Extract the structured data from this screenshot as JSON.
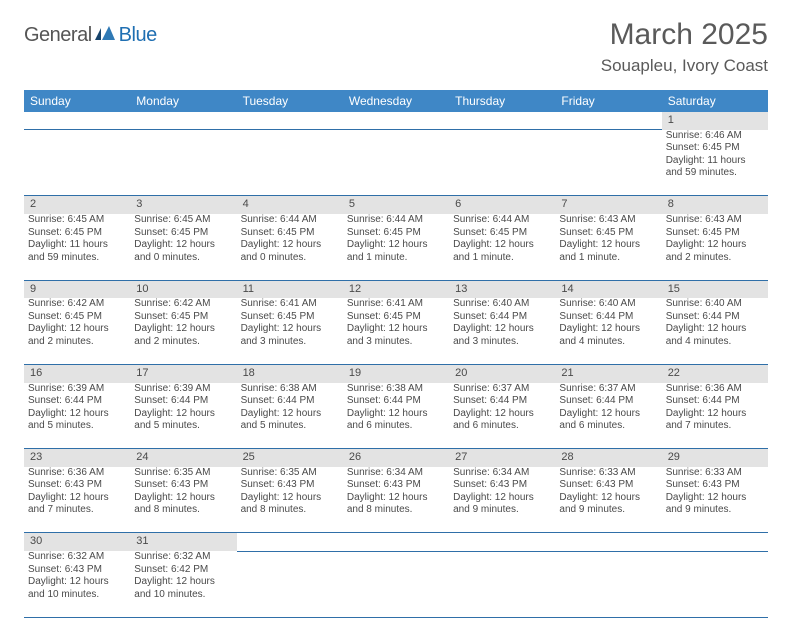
{
  "logo": {
    "text1": "General",
    "text2": "Blue"
  },
  "title": "March 2025",
  "location": "Souapleu, Ivory Coast",
  "colors": {
    "header_bg": "#3f87c6",
    "header_text": "#ffffff",
    "daynum_bg": "#e3e3e3",
    "body_text": "#4a4a4a",
    "rule": "#2f6fa8",
    "logo_blue": "#1f6fb2",
    "logo_gray": "#555555"
  },
  "weekdays": [
    "Sunday",
    "Monday",
    "Tuesday",
    "Wednesday",
    "Thursday",
    "Friday",
    "Saturday"
  ],
  "weeks": [
    [
      null,
      null,
      null,
      null,
      null,
      null,
      {
        "n": "1",
        "sr": "Sunrise: 6:46 AM",
        "ss": "Sunset: 6:45 PM",
        "dl": "Daylight: 11 hours and 59 minutes."
      }
    ],
    [
      {
        "n": "2",
        "sr": "Sunrise: 6:45 AM",
        "ss": "Sunset: 6:45 PM",
        "dl": "Daylight: 11 hours and 59 minutes."
      },
      {
        "n": "3",
        "sr": "Sunrise: 6:45 AM",
        "ss": "Sunset: 6:45 PM",
        "dl": "Daylight: 12 hours and 0 minutes."
      },
      {
        "n": "4",
        "sr": "Sunrise: 6:44 AM",
        "ss": "Sunset: 6:45 PM",
        "dl": "Daylight: 12 hours and 0 minutes."
      },
      {
        "n": "5",
        "sr": "Sunrise: 6:44 AM",
        "ss": "Sunset: 6:45 PM",
        "dl": "Daylight: 12 hours and 1 minute."
      },
      {
        "n": "6",
        "sr": "Sunrise: 6:44 AM",
        "ss": "Sunset: 6:45 PM",
        "dl": "Daylight: 12 hours and 1 minute."
      },
      {
        "n": "7",
        "sr": "Sunrise: 6:43 AM",
        "ss": "Sunset: 6:45 PM",
        "dl": "Daylight: 12 hours and 1 minute."
      },
      {
        "n": "8",
        "sr": "Sunrise: 6:43 AM",
        "ss": "Sunset: 6:45 PM",
        "dl": "Daylight: 12 hours and 2 minutes."
      }
    ],
    [
      {
        "n": "9",
        "sr": "Sunrise: 6:42 AM",
        "ss": "Sunset: 6:45 PM",
        "dl": "Daylight: 12 hours and 2 minutes."
      },
      {
        "n": "10",
        "sr": "Sunrise: 6:42 AM",
        "ss": "Sunset: 6:45 PM",
        "dl": "Daylight: 12 hours and 2 minutes."
      },
      {
        "n": "11",
        "sr": "Sunrise: 6:41 AM",
        "ss": "Sunset: 6:45 PM",
        "dl": "Daylight: 12 hours and 3 minutes."
      },
      {
        "n": "12",
        "sr": "Sunrise: 6:41 AM",
        "ss": "Sunset: 6:45 PM",
        "dl": "Daylight: 12 hours and 3 minutes."
      },
      {
        "n": "13",
        "sr": "Sunrise: 6:40 AM",
        "ss": "Sunset: 6:44 PM",
        "dl": "Daylight: 12 hours and 3 minutes."
      },
      {
        "n": "14",
        "sr": "Sunrise: 6:40 AM",
        "ss": "Sunset: 6:44 PM",
        "dl": "Daylight: 12 hours and 4 minutes."
      },
      {
        "n": "15",
        "sr": "Sunrise: 6:40 AM",
        "ss": "Sunset: 6:44 PM",
        "dl": "Daylight: 12 hours and 4 minutes."
      }
    ],
    [
      {
        "n": "16",
        "sr": "Sunrise: 6:39 AM",
        "ss": "Sunset: 6:44 PM",
        "dl": "Daylight: 12 hours and 5 minutes."
      },
      {
        "n": "17",
        "sr": "Sunrise: 6:39 AM",
        "ss": "Sunset: 6:44 PM",
        "dl": "Daylight: 12 hours and 5 minutes."
      },
      {
        "n": "18",
        "sr": "Sunrise: 6:38 AM",
        "ss": "Sunset: 6:44 PM",
        "dl": "Daylight: 12 hours and 5 minutes."
      },
      {
        "n": "19",
        "sr": "Sunrise: 6:38 AM",
        "ss": "Sunset: 6:44 PM",
        "dl": "Daylight: 12 hours and 6 minutes."
      },
      {
        "n": "20",
        "sr": "Sunrise: 6:37 AM",
        "ss": "Sunset: 6:44 PM",
        "dl": "Daylight: 12 hours and 6 minutes."
      },
      {
        "n": "21",
        "sr": "Sunrise: 6:37 AM",
        "ss": "Sunset: 6:44 PM",
        "dl": "Daylight: 12 hours and 6 minutes."
      },
      {
        "n": "22",
        "sr": "Sunrise: 6:36 AM",
        "ss": "Sunset: 6:44 PM",
        "dl": "Daylight: 12 hours and 7 minutes."
      }
    ],
    [
      {
        "n": "23",
        "sr": "Sunrise: 6:36 AM",
        "ss": "Sunset: 6:43 PM",
        "dl": "Daylight: 12 hours and 7 minutes."
      },
      {
        "n": "24",
        "sr": "Sunrise: 6:35 AM",
        "ss": "Sunset: 6:43 PM",
        "dl": "Daylight: 12 hours and 8 minutes."
      },
      {
        "n": "25",
        "sr": "Sunrise: 6:35 AM",
        "ss": "Sunset: 6:43 PM",
        "dl": "Daylight: 12 hours and 8 minutes."
      },
      {
        "n": "26",
        "sr": "Sunrise: 6:34 AM",
        "ss": "Sunset: 6:43 PM",
        "dl": "Daylight: 12 hours and 8 minutes."
      },
      {
        "n": "27",
        "sr": "Sunrise: 6:34 AM",
        "ss": "Sunset: 6:43 PM",
        "dl": "Daylight: 12 hours and 9 minutes."
      },
      {
        "n": "28",
        "sr": "Sunrise: 6:33 AM",
        "ss": "Sunset: 6:43 PM",
        "dl": "Daylight: 12 hours and 9 minutes."
      },
      {
        "n": "29",
        "sr": "Sunrise: 6:33 AM",
        "ss": "Sunset: 6:43 PM",
        "dl": "Daylight: 12 hours and 9 minutes."
      }
    ],
    [
      {
        "n": "30",
        "sr": "Sunrise: 6:32 AM",
        "ss": "Sunset: 6:43 PM",
        "dl": "Daylight: 12 hours and 10 minutes."
      },
      {
        "n": "31",
        "sr": "Sunrise: 6:32 AM",
        "ss": "Sunset: 6:42 PM",
        "dl": "Daylight: 12 hours and 10 minutes."
      },
      null,
      null,
      null,
      null,
      null
    ]
  ]
}
